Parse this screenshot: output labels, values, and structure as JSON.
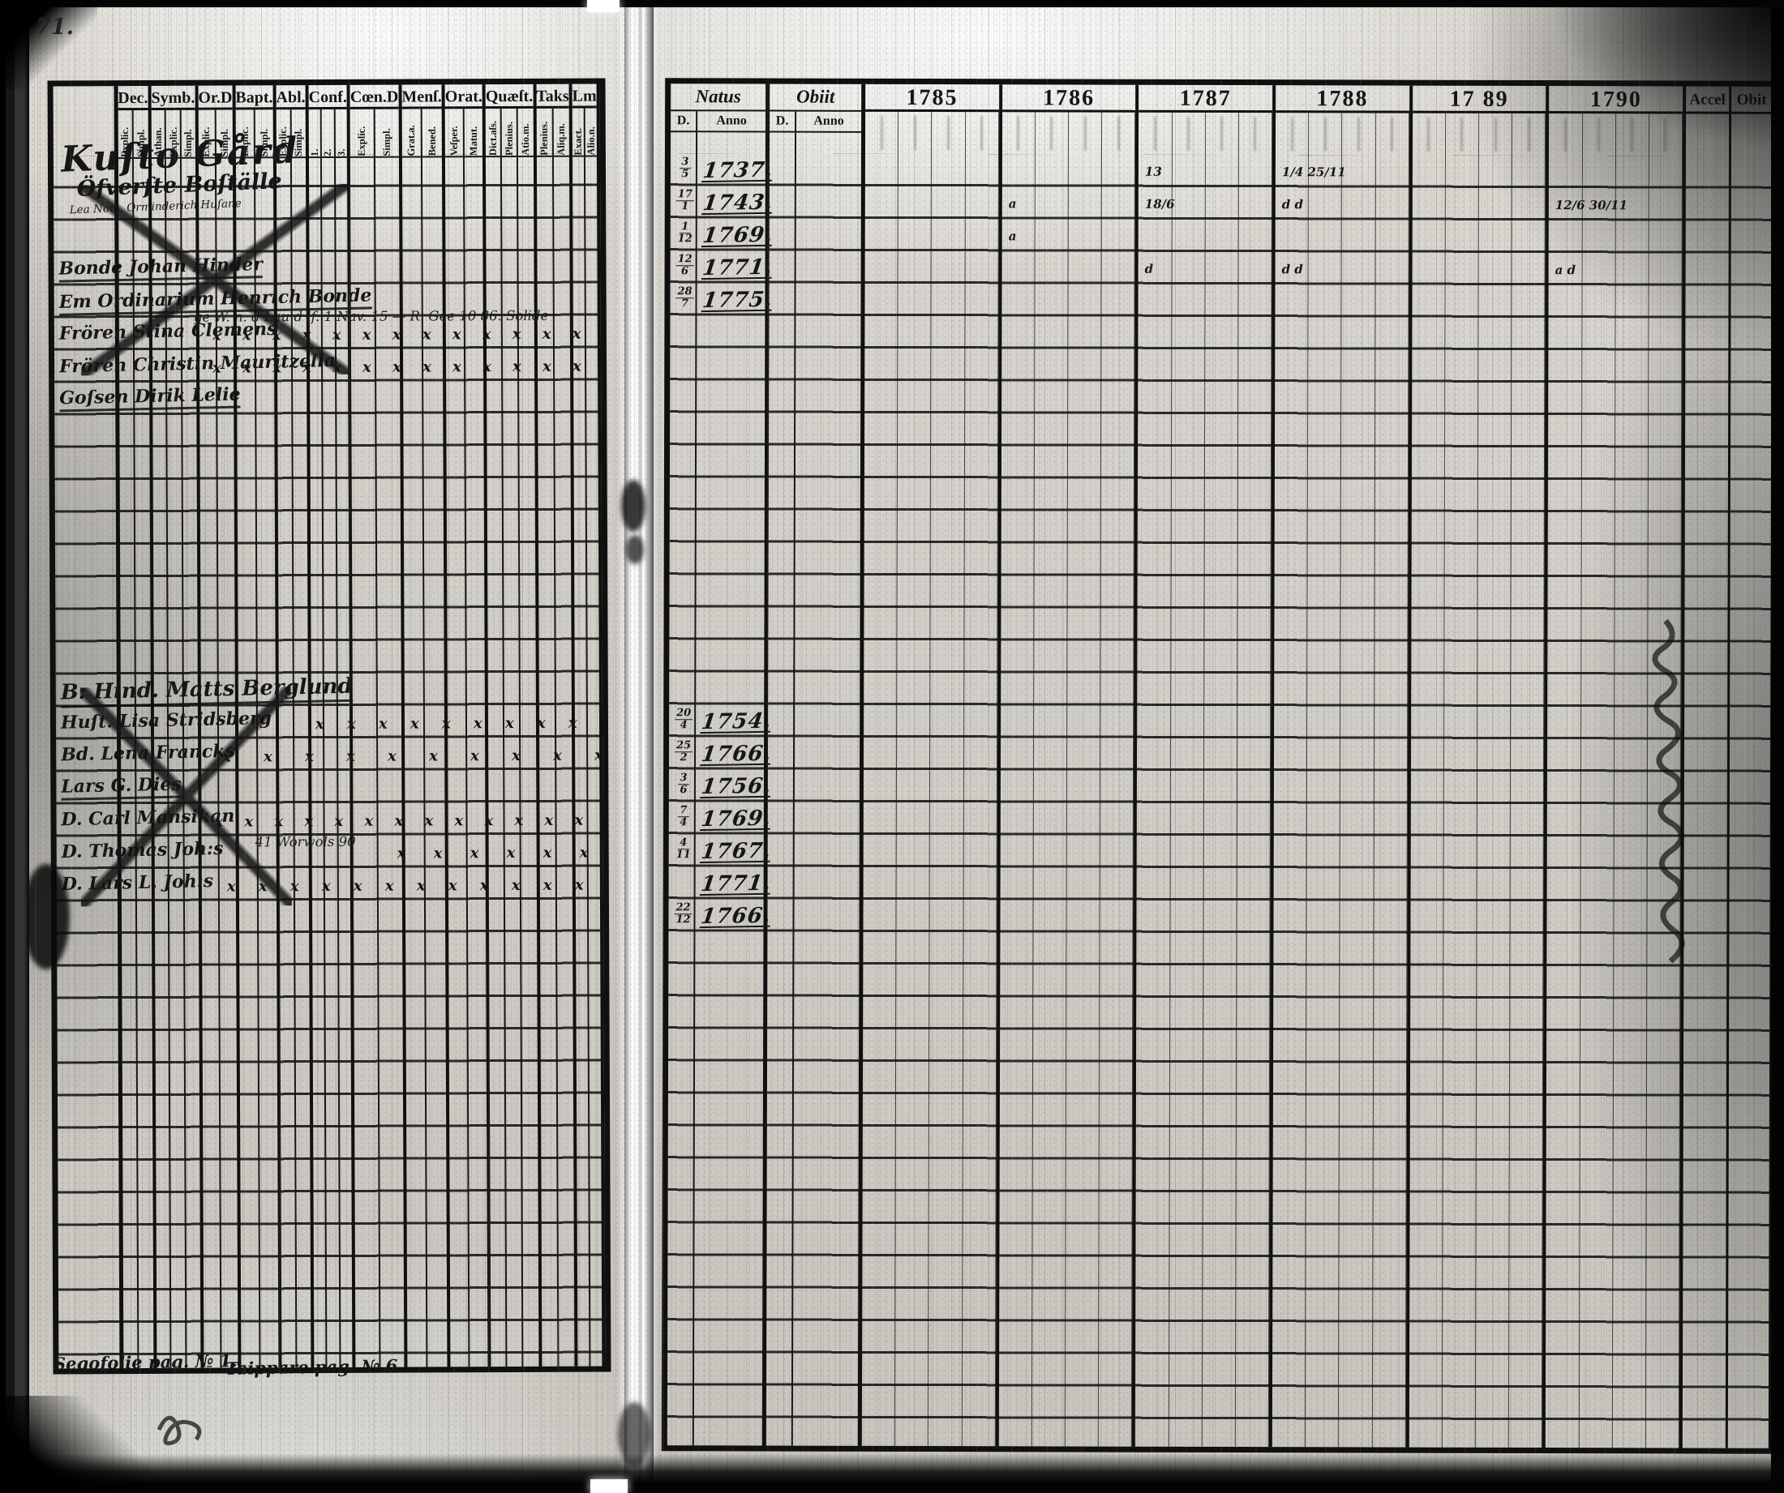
{
  "film": {
    "page_number": "71."
  },
  "left_page": {
    "title_lines": [
      "Kuſto Gård",
      "Öfverſte Boſtälle",
      "Lea Nom. Orminderich Huſane"
    ],
    "columns": [
      {
        "label": "Dec.",
        "subs": [
          "Explic.",
          "Simpl."
        ]
      },
      {
        "label": "Symb.",
        "subs": [
          "Athan.",
          "Explic.",
          "Simpl."
        ]
      },
      {
        "label": "Or.D",
        "subs": [
          "Explic.",
          "Simpl."
        ]
      },
      {
        "label": "Bapt.",
        "subs": [
          "Explic.",
          "Simpl."
        ]
      },
      {
        "label": "Abl.",
        "subs": [
          "Explic.",
          "Simpl."
        ]
      },
      {
        "label": "Conf.",
        "subs": [
          "1.",
          "2.",
          "3."
        ]
      },
      {
        "label": "Cœn.D",
        "subs": [
          "Explic.",
          "Simpl."
        ]
      },
      {
        "label": "Menſ.",
        "subs": [
          "Grat.a.",
          "Bened."
        ]
      },
      {
        "label": "Orat.",
        "subs": [
          "Veſper.",
          "Matut."
        ]
      },
      {
        "label": "Quæſt.",
        "subs": [
          "Dict.aſs.",
          "Plenius.",
          "Atio.m."
        ]
      },
      {
        "label": "Taks",
        "subs": [
          "Plenius.",
          "Aliq.m."
        ]
      },
      {
        "label": "Lm",
        "subs": [
          "Exact.",
          "Alio.n."
        ]
      }
    ],
    "entries": [
      {
        "row": 3,
        "name": "Bonde Johan Hinder",
        "underline": true
      },
      {
        "row": 4,
        "name": "Em Ordinarium Henrich Bonde",
        "underline": true,
        "note": "ge W. n. d Lau d lf. 1 Nav. 15 — R. Gee 10 86. Solide"
      },
      {
        "row": 5,
        "name": "Frören Stina Clemens",
        "xmarks": "full"
      },
      {
        "row": 6,
        "name": "Frören Christin Mauritzella",
        "xmarks": "full"
      },
      {
        "row": 7,
        "name": "Goſsen Dirik Lelie",
        "underline": true
      },
      {
        "row": 16,
        "name": "B: Hind. Matts Berglund",
        "underline": true,
        "large": true
      },
      {
        "row": 17,
        "name": "Huſt. Lisa Stridsberg",
        "xmarks": "mid"
      },
      {
        "row": 18,
        "name": "Bd. Lena Francks",
        "xmarks": "part"
      },
      {
        "row": 19,
        "name": "Lars G. Dies",
        "underline": true
      },
      {
        "row": 20,
        "name": "D. Carl Mansikan",
        "xmarks": "full",
        "note": "41 Worwols 90"
      },
      {
        "row": 21,
        "name": "D. Thomas Joh:s",
        "xmarks": "right"
      },
      {
        "row": 22,
        "name": "D. Lars L. Joh:s",
        "xmarks": "long"
      }
    ],
    "footnotes": [
      {
        "text": "Segofolie pag. № 1."
      },
      {
        "text": "Taippare pag. № 6."
      }
    ]
  },
  "right_page": {
    "header": {
      "natus": "Natus",
      "obiit": "Obiit",
      "sub_d": "D.",
      "sub_anno": "Anno",
      "years": [
        "1785",
        "1786",
        "1787",
        "1788",
        "17 89",
        "1790"
      ],
      "accel": "Accel",
      "obit": "Obit"
    },
    "natus_entries": [
      {
        "row": 0,
        "day": "3/5",
        "year": "1737."
      },
      {
        "row": 1,
        "day": "17/1",
        "year": "1743."
      },
      {
        "row": 2,
        "day": "1/12",
        "year": "1769."
      },
      {
        "row": 3,
        "day": "12/6",
        "year": "1771."
      },
      {
        "row": 4,
        "day": "28/7",
        "year": "1775."
      },
      {
        "row": 17,
        "day": "20/4",
        "year": "1754."
      },
      {
        "row": 18,
        "day": "25/2",
        "year": "1766."
      },
      {
        "row": 19,
        "day": "3/6",
        "year": "1756."
      },
      {
        "row": 20,
        "day": "7/4",
        "year": "1769."
      },
      {
        "row": 21,
        "day": "4/11",
        "year": "1767."
      },
      {
        "row": 22,
        "day": "",
        "year": "1771."
      },
      {
        "row": 23,
        "day": "22/12",
        "year": "1766."
      }
    ],
    "year_marks": [
      {
        "row": 0,
        "year": "1787",
        "text": "13"
      },
      {
        "row": 0,
        "year": "1788",
        "text": "1/4 25/11"
      },
      {
        "row": 1,
        "year": "1786",
        "text": "a"
      },
      {
        "row": 1,
        "year": "1787",
        "text": "18/6"
      },
      {
        "row": 1,
        "year": "1788",
        "text": "d d"
      },
      {
        "row": 1,
        "year": "1790",
        "text": "12/6 30/11"
      },
      {
        "row": 2,
        "year": "1786",
        "text": "a"
      },
      {
        "row": 3,
        "year": "1787",
        "text": "d"
      },
      {
        "row": 3,
        "year": "1788",
        "text": "d d"
      },
      {
        "row": 3,
        "year": "1790",
        "text": "a d"
      }
    ]
  },
  "glyphs": {
    "xmark": "x"
  }
}
